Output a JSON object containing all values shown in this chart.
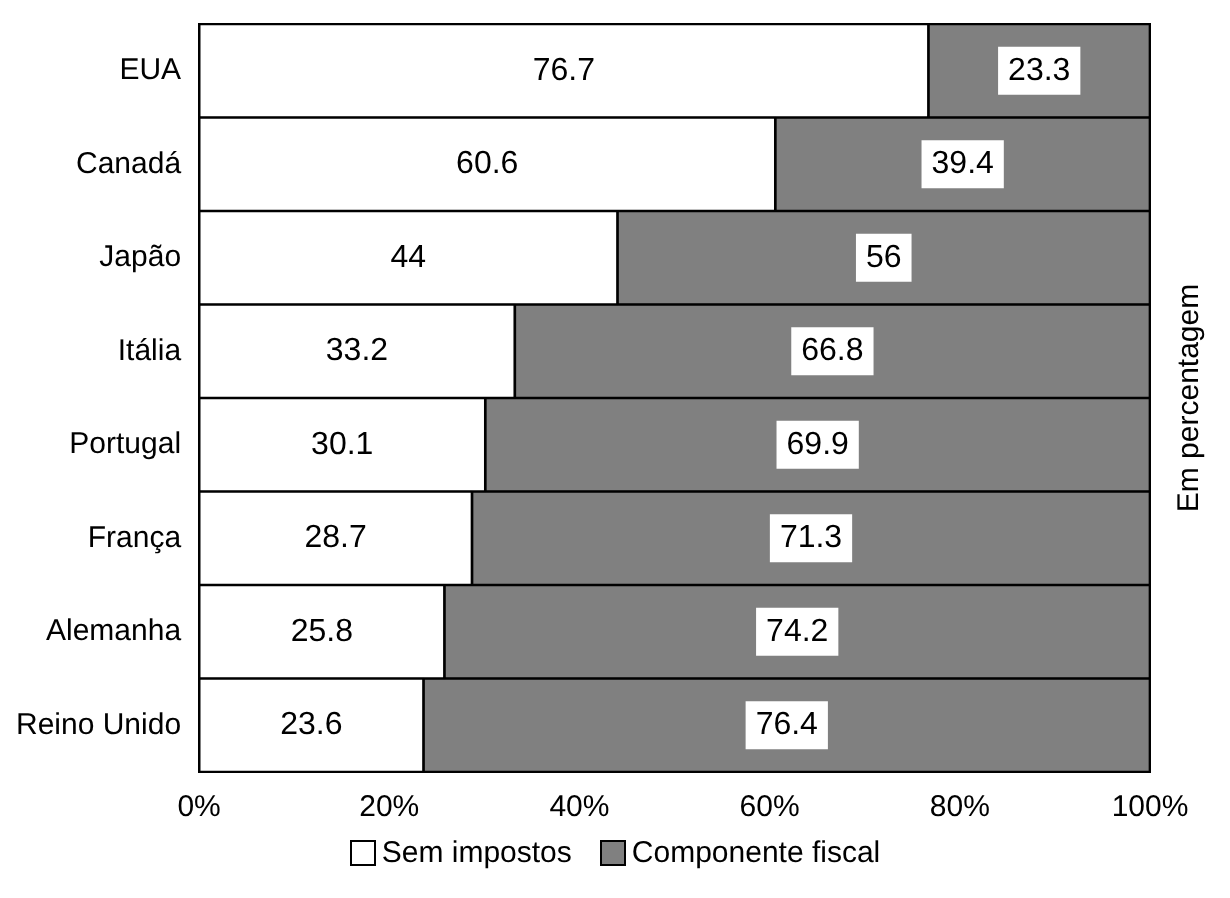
{
  "chart_data": {
    "type": "bar",
    "orientation": "horizontal",
    "stacked": true,
    "data_labels": true,
    "legend": "bottom",
    "ylabel": "Em percentagem",
    "categories": [
      "EUA",
      "Canadá",
      "Japão",
      "Itália",
      "Portugal",
      "França",
      "Alemanha",
      "Reino Unido"
    ],
    "series": [
      {
        "name": "Sem impostos",
        "color": "#ffffff",
        "values": [
          76.7,
          60.6,
          44,
          33.2,
          30.1,
          28.7,
          25.8,
          23.6
        ]
      },
      {
        "name": "Componente fiscal",
        "color": "#808080",
        "values": [
          23.3,
          39.4,
          56,
          66.8,
          69.9,
          71.3,
          74.2,
          76.4
        ]
      }
    ],
    "xlim": [
      0,
      100
    ],
    "xticks": [
      {
        "value": 0,
        "label": "0%"
      },
      {
        "value": 20,
        "label": "20%"
      },
      {
        "value": 40,
        "label": "40%"
      },
      {
        "value": 60,
        "label": "60%"
      },
      {
        "value": 80,
        "label": "80%"
      },
      {
        "value": 100,
        "label": "100%"
      }
    ]
  }
}
